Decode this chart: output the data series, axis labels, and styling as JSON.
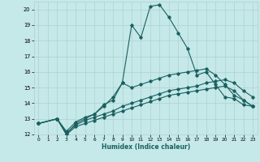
{
  "xlabel": "Humidex (Indice chaleur)",
  "xlim": [
    -0.5,
    23.5
  ],
  "ylim": [
    12,
    20.5
  ],
  "yticks": [
    12,
    13,
    14,
    15,
    16,
    17,
    18,
    19,
    20
  ],
  "xticks": [
    0,
    1,
    2,
    3,
    4,
    5,
    6,
    7,
    8,
    9,
    10,
    11,
    12,
    13,
    14,
    15,
    16,
    17,
    18,
    19,
    20,
    21,
    22,
    23
  ],
  "bg_color": "#c5e8e8",
  "grid_color": "#b0d0d0",
  "line_color": "#1a6060",
  "lines": [
    {
      "x": [
        0,
        2,
        3,
        4,
        5,
        6,
        7,
        8,
        9,
        10,
        11,
        12,
        13,
        14,
        15,
        16,
        17,
        18,
        19,
        20,
        21,
        22,
        23
      ],
      "y": [
        12.7,
        13.0,
        12.0,
        12.7,
        13.0,
        13.3,
        13.8,
        14.4,
        15.3,
        19.0,
        18.2,
        20.2,
        20.3,
        19.5,
        18.5,
        17.5,
        15.8,
        16.0,
        15.2,
        14.4,
        14.3,
        13.9,
        13.8
      ]
    },
    {
      "x": [
        0,
        2,
        3,
        4,
        5,
        6,
        7,
        8,
        9,
        10,
        11,
        12,
        13,
        14,
        15,
        16,
        17,
        18,
        19,
        20,
        21,
        22,
        23
      ],
      "y": [
        12.7,
        13.0,
        12.2,
        12.8,
        13.1,
        13.3,
        13.9,
        14.2,
        15.3,
        15.0,
        15.2,
        15.4,
        15.6,
        15.8,
        15.9,
        16.0,
        16.1,
        16.2,
        15.8,
        15.2,
        14.5,
        14.2,
        13.8
      ]
    },
    {
      "x": [
        0,
        2,
        3,
        4,
        5,
        6,
        7,
        8,
        9,
        10,
        11,
        12,
        13,
        14,
        15,
        16,
        17,
        18,
        19,
        20,
        21,
        22,
        23
      ],
      "y": [
        12.7,
        13.0,
        12.1,
        12.6,
        12.9,
        13.1,
        13.3,
        13.5,
        13.8,
        14.0,
        14.2,
        14.4,
        14.6,
        14.8,
        14.9,
        15.0,
        15.1,
        15.3,
        15.4,
        15.5,
        15.3,
        14.8,
        14.4
      ]
    },
    {
      "x": [
        0,
        2,
        3,
        4,
        5,
        6,
        7,
        8,
        9,
        10,
        11,
        12,
        13,
        14,
        15,
        16,
        17,
        18,
        19,
        20,
        21,
        22,
        23
      ],
      "y": [
        12.7,
        13.0,
        12.0,
        12.5,
        12.7,
        12.9,
        13.1,
        13.3,
        13.5,
        13.7,
        13.9,
        14.1,
        14.3,
        14.5,
        14.6,
        14.7,
        14.8,
        14.9,
        15.0,
        15.1,
        14.8,
        14.2,
        13.8
      ]
    }
  ]
}
